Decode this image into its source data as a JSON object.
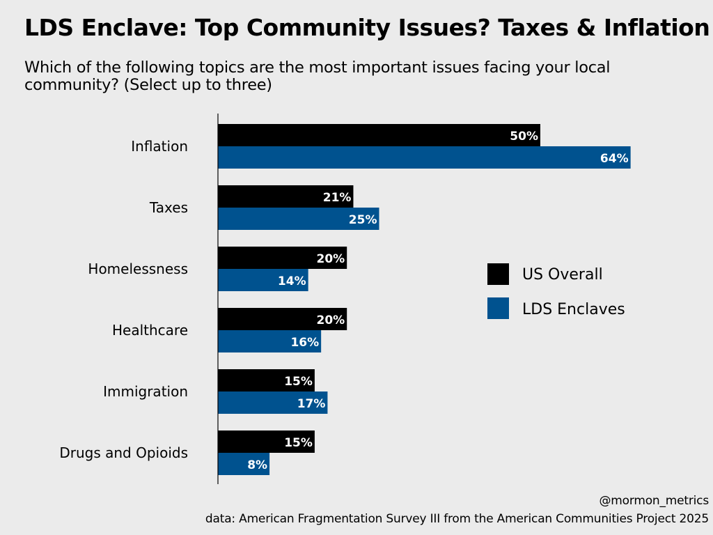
{
  "chart_data": {
    "type": "bar",
    "orientation": "horizontal",
    "title": "LDS Enclave: Top Community Issues? Taxes & Inflation",
    "subtitle": "Which of the following topics are the most important issues facing your local community? (Select up to three)",
    "categories": [
      "Inflation",
      "Taxes",
      "Homelessness",
      "Healthcare",
      "Immigration",
      "Drugs and Opioids"
    ],
    "series": [
      {
        "name": "US Overall",
        "color": "#000000",
        "values": [
          50,
          21,
          20,
          20,
          15,
          15
        ],
        "labels": [
          "50%",
          "21%",
          "20%",
          "20%",
          "15%",
          "15%"
        ]
      },
      {
        "name": "LDS Enclaves",
        "color": "#00528f",
        "values": [
          64,
          25,
          14,
          16,
          17,
          8
        ],
        "labels": [
          "64%",
          "25%",
          "14%",
          "16%",
          "17%",
          "8%"
        ]
      }
    ],
    "xlim": [
      0,
      70
    ],
    "grid": false,
    "legend_position": "right"
  },
  "footer": {
    "credit": "@mormon_metrics",
    "source": "data: American Fragmentation Survey III from the American Communities Project 2025"
  }
}
